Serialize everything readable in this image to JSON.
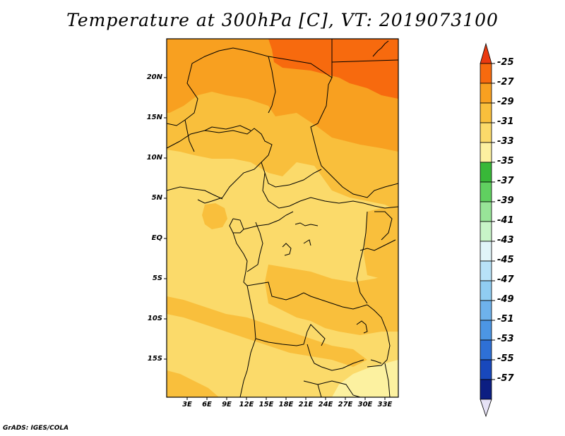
{
  "title": "Temperature at 300hPa [C], VT: 2019073100",
  "credit": "GrADS: IGES/COLA",
  "lat_labels": [
    "20N",
    "15N",
    "10N",
    "5N",
    "EQ",
    "5S",
    "10S",
    "15S"
  ],
  "lon_labels": [
    "3E",
    "6E",
    "9E",
    "12E",
    "15E",
    "18E",
    "21E",
    "24E",
    "27E",
    "30E",
    "33E"
  ],
  "colorbar": {
    "labels": [
      "-25",
      "-27",
      "-29",
      "-31",
      "-33",
      "-35",
      "-37",
      "-39",
      "-41",
      "-43",
      "-45",
      "-47",
      "-49",
      "-51",
      "-53",
      "-55",
      "-57"
    ],
    "colors": [
      "#ea3a10",
      "#f76a0e",
      "#f8a020",
      "#f9bf3c",
      "#fbda6a",
      "#fcf1a0",
      "#38b838",
      "#60d060",
      "#98e498",
      "#c8f4c8",
      "#e0f4f8",
      "#b8e2f8",
      "#90cdf2",
      "#6eb2ec",
      "#4c96e4",
      "#2e70d6",
      "#1848bc",
      "#0c1e82",
      "#e6e2f6"
    ],
    "top_color": "#ea3a10",
    "bottom_color": "#e6e2f6"
  },
  "map_colors": {
    "warmest": "#f76a0e",
    "very_warm": "#f8a020",
    "warm": "#f9bf3c",
    "mild": "#fbda6a",
    "cool": "#fcf1a0",
    "border": "#000000"
  }
}
